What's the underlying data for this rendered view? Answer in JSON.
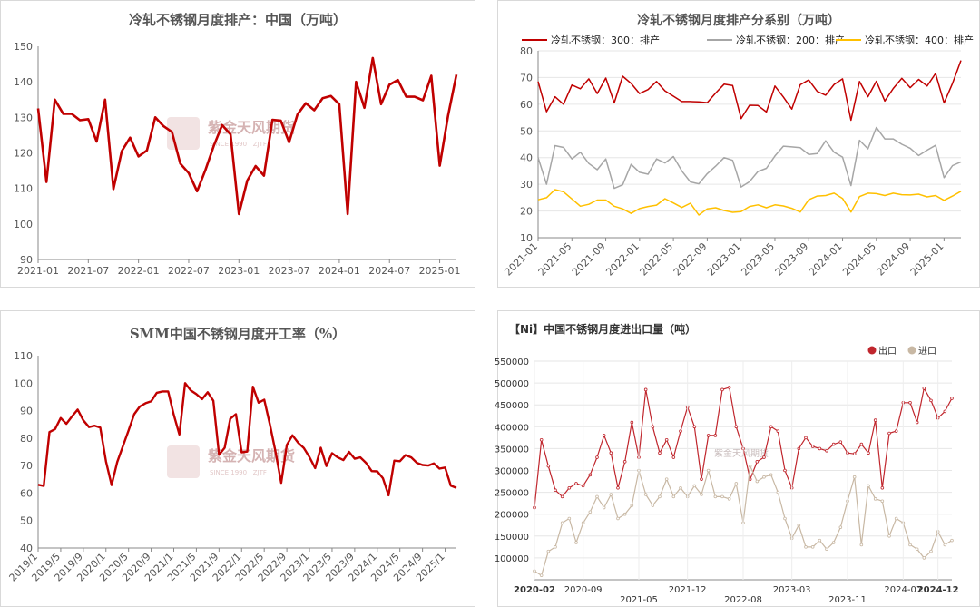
{
  "chart_data": [
    {
      "type": "line",
      "title": "冷轧不锈钢月度排产：中国（万吨）",
      "ylim": [
        90,
        150
      ],
      "yticks": [
        90,
        100,
        110,
        120,
        130,
        140,
        150
      ],
      "xticks": [
        "2021-01",
        "2021-07",
        "2022-01",
        "2022-07",
        "2023-01",
        "2023-07",
        "2024-01",
        "2024-07",
        "2025-01"
      ],
      "grid": false,
      "watermark": "紫金天风期货",
      "x": [
        "2021-01",
        "2021-02",
        "2021-03",
        "2021-04",
        "2021-05",
        "2021-06",
        "2021-07",
        "2021-08",
        "2021-09",
        "2021-10",
        "2021-11",
        "2021-12",
        "2022-01",
        "2022-02",
        "2022-03",
        "2022-04",
        "2022-05",
        "2022-06",
        "2022-07",
        "2022-08",
        "2022-09",
        "2022-10",
        "2022-11",
        "2022-12",
        "2023-01",
        "2023-02",
        "2023-03",
        "2023-04",
        "2023-05",
        "2023-06",
        "2023-07",
        "2023-08",
        "2023-09",
        "2023-10",
        "2023-11",
        "2023-12",
        "2024-01",
        "2024-02",
        "2024-03",
        "2024-04",
        "2024-05",
        "2024-06",
        "2024-07",
        "2024-08",
        "2024-09",
        "2024-10",
        "2024-11",
        "2024-12",
        "2025-01",
        "2025-02",
        "2025-03"
      ],
      "series": [
        {
          "color": "#c00000",
          "values": [
            132.5,
            111.8,
            135,
            131,
            131,
            129.2,
            129.5,
            123.2,
            135,
            109.8,
            120.5,
            124.3,
            119,
            120.7,
            130,
            127.5,
            125.9,
            117,
            114.3,
            109.2,
            115.2,
            122,
            127.8,
            125.2,
            102.8,
            112.2,
            116.3,
            113.6,
            129.3,
            129.1,
            123,
            130.8,
            134,
            132,
            135.4,
            136,
            133.7,
            102.8,
            140,
            132.7,
            146.7,
            133.7,
            139.2,
            140.5,
            135.8,
            135.8,
            134.8,
            141.7,
            116.4,
            130.5,
            142
          ]
        }
      ]
    },
    {
      "type": "line",
      "title": "冷轧不锈钢月度排产分系别（万吨）",
      "ylim": [
        10,
        80
      ],
      "yticks": [
        10,
        20,
        30,
        40,
        50,
        60,
        70,
        80
      ],
      "xticks": [
        "2021-01",
        "2021-05",
        "2021-09",
        "2022-01",
        "2022-05",
        "2022-09",
        "2023-01",
        "2023-05",
        "2023-09",
        "2024-01",
        "2024-05",
        "2024-09",
        "2025-01"
      ],
      "legend_position": "top",
      "grid": true,
      "x": [
        "2021-01",
        "2021-02",
        "2021-03",
        "2021-04",
        "2021-05",
        "2021-06",
        "2021-07",
        "2021-08",
        "2021-09",
        "2021-10",
        "2021-11",
        "2021-12",
        "2022-01",
        "2022-02",
        "2022-03",
        "2022-04",
        "2022-05",
        "2022-06",
        "2022-07",
        "2022-08",
        "2022-09",
        "2022-10",
        "2022-11",
        "2022-12",
        "2023-01",
        "2023-02",
        "2023-03",
        "2023-04",
        "2023-05",
        "2023-06",
        "2023-07",
        "2023-08",
        "2023-09",
        "2023-10",
        "2023-11",
        "2023-12",
        "2024-01",
        "2024-02",
        "2024-03",
        "2024-04",
        "2024-05",
        "2024-06",
        "2024-07",
        "2024-08",
        "2024-09",
        "2024-10",
        "2024-11",
        "2024-12",
        "2025-01",
        "2025-02",
        "2025-03"
      ],
      "series": [
        {
          "name": "冷轧不锈钢：300：排产",
          "color": "#c00000",
          "values": [
            68.5,
            57.2,
            62.8,
            60,
            67.2,
            65.8,
            69.5,
            64,
            69.8,
            60.5,
            70.5,
            67.8,
            64,
            65.5,
            68.5,
            65,
            63,
            61,
            61,
            60.9,
            60.6,
            64.2,
            67.5,
            67,
            54.6,
            59.6,
            59.5,
            57.1,
            66.8,
            62.7,
            58.2,
            67.3,
            69.1,
            64.8,
            63.4,
            67.4,
            69.5,
            54,
            68.5,
            62.8,
            68.6,
            61.2,
            65.9,
            69.7,
            66.2,
            69.3,
            66.8,
            71.5,
            60.5,
            67.8,
            76.4
          ]
        },
        {
          "name": "冷轧不锈钢：200：排产",
          "color": "#a6a6a6",
          "values": [
            40,
            30,
            44.5,
            43.8,
            39.5,
            42,
            37.8,
            35.5,
            39.5,
            28.5,
            29.8,
            37.5,
            34.5,
            33.8,
            39.5,
            38,
            40.4,
            35,
            30.9,
            30.2,
            34,
            36.8,
            40,
            39,
            29,
            31,
            34.8,
            36,
            40.6,
            44.3,
            44,
            43.7,
            41.2,
            41.5,
            46.3,
            42,
            40.2,
            29.5,
            46.5,
            43.3,
            51.3,
            47,
            47,
            45,
            43.5,
            40.8,
            42.8,
            44.6,
            32.5,
            37,
            38.4
          ]
        },
        {
          "name": "冷轧不锈钢：400：排产",
          "color": "#ffc000",
          "values": [
            24.2,
            25,
            28,
            27.2,
            24.5,
            21.8,
            22.5,
            24.1,
            24.1,
            21.8,
            20.8,
            19.1,
            20.9,
            21.7,
            22.2,
            24.6,
            23,
            21.3,
            22.9,
            18.5,
            20.8,
            21.2,
            20.2,
            19.5,
            19.8,
            21.7,
            22.3,
            21.2,
            22.3,
            21.9,
            21,
            19.6,
            24.2,
            25.6,
            25.8,
            26.7,
            24.7,
            19.6,
            25.4,
            26.7,
            26.5,
            25.8,
            26.7,
            26.1,
            26,
            26.3,
            25.3,
            25.8,
            24,
            25.6,
            27.4
          ]
        }
      ]
    },
    {
      "type": "line",
      "title": "SMM中国不锈钢月度开工率（%）",
      "ylim": [
        40,
        110
      ],
      "yticks": [
        40,
        50,
        60,
        70,
        80,
        90,
        100,
        110
      ],
      "xticks": [
        "2019/1",
        "2019/5",
        "2019/9",
        "2020/1",
        "2020/5",
        "2020/9",
        "2021/1",
        "2021/5",
        "2021/9",
        "2022/1",
        "2022/5",
        "2022/9",
        "2023/1",
        "2023/5",
        "2023/9",
        "2024/1",
        "2024/5",
        "2024/9",
        "2025/1"
      ],
      "grid": false,
      "watermark": "紫金天风期货",
      "series": [
        {
          "color": "#c00000",
          "values": [
            63,
            62.6,
            82.2,
            83.3,
            87.3,
            85.2,
            87.9,
            90.4,
            86.5,
            84,
            84.5,
            83.8,
            71.5,
            62.9,
            71.3,
            77,
            82.8,
            88.7,
            91.5,
            92.7,
            93.4,
            96.5,
            97,
            97,
            88.5,
            81.3,
            100,
            97.4,
            96,
            94.2,
            96.7,
            93.6,
            73.9,
            76.5,
            87.1,
            88.7,
            74.8,
            75.1,
            98.7,
            92.9,
            94,
            85,
            75.1,
            63.7,
            77.5,
            81,
            78.3,
            76.4,
            73.1,
            69.1,
            76.5,
            69.8,
            74.5,
            73,
            72,
            75,
            72.5,
            73,
            71,
            68,
            67.9,
            65.4,
            59.2,
            71.8,
            71.6,
            73.8,
            73,
            71,
            70.2,
            70,
            70.8,
            68.9,
            69.3,
            62.7,
            61.9
          ]
        }
      ]
    },
    {
      "type": "line",
      "title": "【Ni】中国不锈钢月度进出口量（吨）",
      "ylim": [
        50000,
        550000
      ],
      "yticks": [
        100000,
        150000,
        200000,
        250000,
        300000,
        350000,
        400000,
        450000,
        500000,
        550000
      ],
      "xticks_top_row": [
        "2020-02",
        "2020-09",
        "2021-12",
        "2023-03",
        "2024-07",
        "2024-12"
      ],
      "xticks_bottom_row": [
        "2021-05",
        "2022-08",
        "2023-11"
      ],
      "legend_position": "top-right",
      "grid": true,
      "watermark": "紫金天风期货",
      "series": [
        {
          "name": "出口",
          "color": "#c0262d",
          "values": [
            215000,
            370000,
            310000,
            255000,
            240000,
            260000,
            270000,
            265000,
            290000,
            330000,
            380000,
            340000,
            260000,
            320000,
            410000,
            330000,
            485000,
            400000,
            340000,
            370000,
            330000,
            390000,
            445000,
            400000,
            280000,
            380000,
            380000,
            485000,
            490000,
            400000,
            350000,
            280000,
            320000,
            330000,
            400000,
            390000,
            300000,
            260000,
            350000,
            375000,
            355000,
            350000,
            345000,
            360000,
            365000,
            340000,
            338000,
            360000,
            340000,
            415000,
            260000,
            385000,
            390000,
            455000,
            455000,
            410000,
            488000,
            460000,
            420000,
            435000,
            465000
          ]
        },
        {
          "name": "进口",
          "color": "#c8b8a4",
          "values": [
            70000,
            60000,
            115000,
            125000,
            180000,
            190000,
            135000,
            180000,
            205000,
            240000,
            215000,
            245000,
            190000,
            200000,
            220000,
            300000,
            245000,
            220000,
            240000,
            280000,
            240000,
            260000,
            240000,
            265000,
            245000,
            300000,
            240000,
            240000,
            235000,
            270000,
            180000,
            310000,
            275000,
            285000,
            290000,
            250000,
            190000,
            145000,
            175000,
            125000,
            125000,
            140000,
            120000,
            135000,
            170000,
            230000,
            285000,
            130000,
            265000,
            235000,
            230000,
            150000,
            190000,
            180000,
            130000,
            120000,
            100000,
            115000,
            160000,
            130000,
            140000
          ]
        }
      ]
    }
  ]
}
